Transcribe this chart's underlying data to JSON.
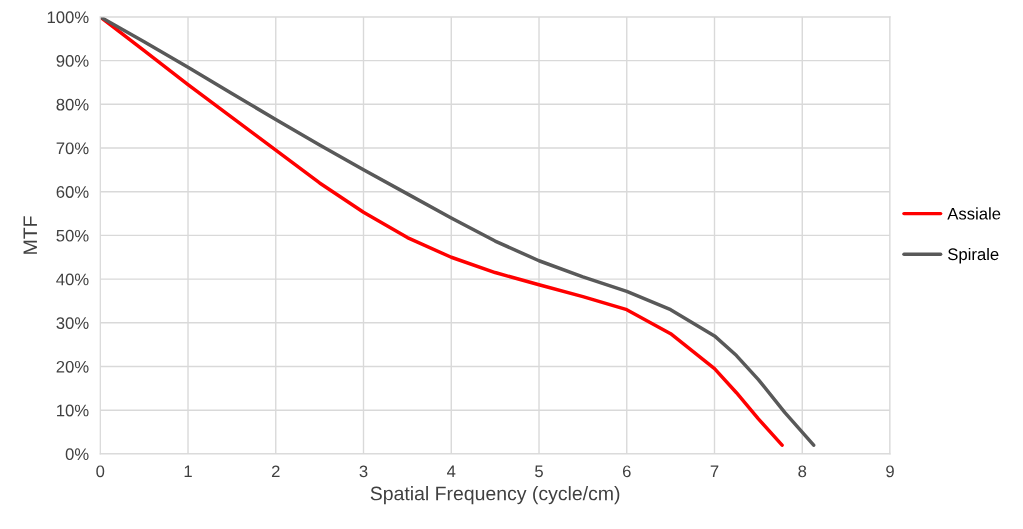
{
  "chart_data": {
    "type": "line",
    "xlabel": "Spatial Frequency (cycle/cm)",
    "ylabel": "MTF",
    "xlim": [
      0,
      9
    ],
    "xticks": [
      0,
      1,
      2,
      3,
      4,
      5,
      6,
      7,
      8,
      9
    ],
    "ylim": [
      0,
      100
    ],
    "yticks": [
      {
        "value": 0,
        "label": "0%"
      },
      {
        "value": 10,
        "label": "10%"
      },
      {
        "value": 20,
        "label": "20%"
      },
      {
        "value": 30,
        "label": "30%"
      },
      {
        "value": 40,
        "label": "40%"
      },
      {
        "value": 50,
        "label": "50%"
      },
      {
        "value": 60,
        "label": "60%"
      },
      {
        "value": 70,
        "label": "70%"
      },
      {
        "value": 80,
        "label": "80%"
      },
      {
        "value": 90,
        "label": "90%"
      },
      {
        "value": 100,
        "label": "100%"
      }
    ],
    "grid": true,
    "legend": "right",
    "marker": "none",
    "line_style": "solid",
    "series": [
      {
        "name": "Assiale",
        "color": "#ff0000",
        "x": [
          0,
          0.5,
          1,
          1.5,
          2,
          2.5,
          3,
          3.5,
          4,
          4.5,
          5,
          5.5,
          6,
          6.5,
          7,
          7.25,
          7.5,
          7.77
        ],
        "values": [
          100,
          92.3,
          84.5,
          77,
          69.5,
          62,
          55.3,
          49.5,
          45,
          41.5,
          38.7,
          36,
          33,
          27.5,
          19.5,
          14,
          8,
          2
        ]
      },
      {
        "name": "Spirale",
        "color": "#595959",
        "x": [
          0,
          0.5,
          1,
          1.5,
          2,
          2.5,
          3,
          3.5,
          4,
          4.5,
          5,
          5.5,
          6,
          6.5,
          7,
          7.25,
          7.5,
          7.8,
          8.13
        ],
        "values": [
          100,
          94.3,
          88.5,
          82.5,
          76.5,
          70.7,
          65,
          59.5,
          54,
          48.7,
          44.2,
          40.5,
          37.2,
          33,
          27,
          22.5,
          17,
          9.5,
          2
        ]
      }
    ]
  }
}
